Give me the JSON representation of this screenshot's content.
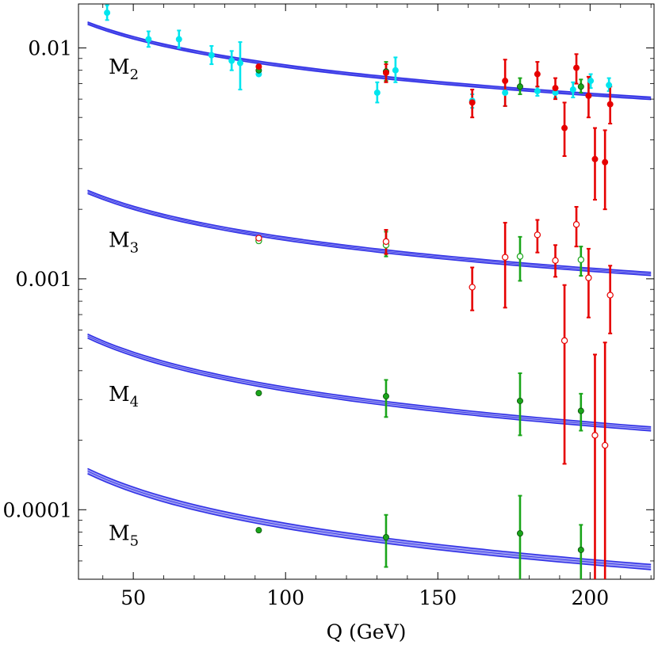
{
  "chart_data": {
    "type": "scatter",
    "title": "",
    "xlabel": "Q (GeV)",
    "ylabel": "",
    "xlim": [
      32,
      221
    ],
    "ylim": [
      5e-05,
      0.0155
    ],
    "yscale": "log",
    "grid": false,
    "x_ticks": [
      {
        "value": 50,
        "label": "50"
      },
      {
        "value": 100,
        "label": "100"
      },
      {
        "value": 150,
        "label": "150"
      },
      {
        "value": 200,
        "label": "200"
      }
    ],
    "y_ticks": [
      {
        "value": 0.01,
        "label": "0.01"
      },
      {
        "value": 0.001,
        "label": "0.001"
      },
      {
        "value": 0.0001,
        "label": "0.0001"
      }
    ],
    "colors": {
      "band": "#3232e6",
      "band_fill": "#9b9bf4",
      "cyan": "#00e5ee",
      "red": "#e60000",
      "green": "#1aa51a"
    },
    "curves": [
      {
        "moment": "M",
        "sub": "2",
        "label_x": 38,
        "label_y": 0.0083,
        "x": [
          35,
          220
        ],
        "y0": 0.0128,
        "y1": 0.00605,
        "width": 0.012
      },
      {
        "moment": "M",
        "sub": "3",
        "label_x": 38,
        "label_y": 0.00148,
        "x": [
          35,
          220
        ],
        "y0": 0.00238,
        "y1": 0.00105,
        "width": 0.016
      },
      {
        "moment": "M",
        "sub": "4",
        "label_x": 38,
        "label_y": 0.000318,
        "x": [
          35,
          220
        ],
        "y0": 0.000565,
        "y1": 0.000224,
        "width": 0.02
      },
      {
        "moment": "M",
        "sub": "5",
        "label_x": 38,
        "label_y": 7.95e-05,
        "x": [
          35,
          220
        ],
        "y0": 0.000147,
        "y1": 5.65e-05,
        "width": 0.026
      }
    ],
    "series": [
      {
        "name": "cyan",
        "color": "cyan",
        "filled": true,
        "points": [
          {
            "x": 41.4,
            "y": 0.0142,
            "lo": 0.0132,
            "hi": 0.0153
          },
          {
            "x": 55.0,
            "y": 0.0109,
            "lo": 0.0101,
            "hi": 0.0118
          },
          {
            "x": 65.0,
            "y": 0.0109,
            "lo": 0.01,
            "hi": 0.0119
          },
          {
            "x": 75.7,
            "y": 0.0093,
            "lo": 0.0085,
            "hi": 0.0102
          },
          {
            "x": 82.3,
            "y": 0.0088,
            "lo": 0.008,
            "hi": 0.0097
          },
          {
            "x": 85.1,
            "y": 0.0086,
            "lo": 0.0066,
            "hi": 0.0106
          },
          {
            "x": 91.2,
            "y": 0.0077,
            "lo": 0.0076,
            "hi": 0.0078
          },
          {
            "x": 130.1,
            "y": 0.0064,
            "lo": 0.0058,
            "hi": 0.0071
          },
          {
            "x": 136.1,
            "y": 0.008,
            "lo": 0.0071,
            "hi": 0.0091
          },
          {
            "x": 161.3,
            "y": 0.0059,
            "lo": 0.0055,
            "hi": 0.0063
          },
          {
            "x": 172.1,
            "y": 0.0064,
            "lo": 0.0056,
            "hi": 0.0073
          },
          {
            "x": 182.7,
            "y": 0.0065,
            "lo": 0.0062,
            "hi": 0.0068
          },
          {
            "x": 188.6,
            "y": 0.0064,
            "lo": 0.0061,
            "hi": 0.0068
          },
          {
            "x": 194.4,
            "y": 0.0066,
            "lo": 0.0061,
            "hi": 0.0071
          },
          {
            "x": 200.2,
            "y": 0.0072,
            "lo": 0.0067,
            "hi": 0.0077
          },
          {
            "x": 206.2,
            "y": 0.0069,
            "lo": 0.0065,
            "hi": 0.0074
          }
        ]
      },
      {
        "name": "M2 green",
        "color": "green",
        "filled": true,
        "points": [
          {
            "x": 91.2,
            "y": 0.008,
            "lo": 0.0079,
            "hi": 0.0081
          },
          {
            "x": 133.0,
            "y": 0.0079,
            "lo": 0.0072,
            "hi": 0.0087
          },
          {
            "x": 177.0,
            "y": 0.0068,
            "lo": 0.0063,
            "hi": 0.0074
          },
          {
            "x": 197.0,
            "y": 0.0068,
            "lo": 0.0064,
            "hi": 0.0073
          }
        ]
      },
      {
        "name": "M2 red",
        "color": "red",
        "filled": true,
        "points": [
          {
            "x": 91.2,
            "y": 0.0083,
            "lo": 0.0082,
            "hi": 0.0084
          },
          {
            "x": 133.0,
            "y": 0.0078,
            "lo": 0.0071,
            "hi": 0.0085
          },
          {
            "x": 161.3,
            "y": 0.0058,
            "lo": 0.005,
            "hi": 0.0066
          },
          {
            "x": 172.1,
            "y": 0.0072,
            "lo": 0.0056,
            "hi": 0.0089
          },
          {
            "x": 182.7,
            "y": 0.0077,
            "lo": 0.0068,
            "hi": 0.0087
          },
          {
            "x": 188.6,
            "y": 0.0067,
            "lo": 0.006,
            "hi": 0.0074
          },
          {
            "x": 191.6,
            "y": 0.0045,
            "lo": 0.0034,
            "hi": 0.0058
          },
          {
            "x": 195.5,
            "y": 0.0082,
            "lo": 0.007,
            "hi": 0.0094
          },
          {
            "x": 199.5,
            "y": 0.0062,
            "lo": 0.005,
            "hi": 0.0075
          },
          {
            "x": 201.6,
            "y": 0.0033,
            "lo": 0.0022,
            "hi": 0.0045
          },
          {
            "x": 204.9,
            "y": 0.0032,
            "lo": 0.002,
            "hi": 0.0044
          },
          {
            "x": 206.6,
            "y": 0.0057,
            "lo": 0.0047,
            "hi": 0.0068
          }
        ]
      },
      {
        "name": "M3 green",
        "color": "green",
        "filled": false,
        "points": [
          {
            "x": 91.2,
            "y": 0.00146,
            "lo": 0.00143,
            "hi": 0.00149
          },
          {
            "x": 133.0,
            "y": 0.0014,
            "lo": 0.00125,
            "hi": 0.0016
          },
          {
            "x": 177.0,
            "y": 0.00125,
            "lo": 0.00098,
            "hi": 0.00152
          },
          {
            "x": 197.0,
            "y": 0.00121,
            "lo": 0.00103,
            "hi": 0.00138
          }
        ]
      },
      {
        "name": "M3 red",
        "color": "red",
        "filled": false,
        "points": [
          {
            "x": 91.2,
            "y": 0.0015,
            "lo": 0.00147,
            "hi": 0.00153
          },
          {
            "x": 133.0,
            "y": 0.00145,
            "lo": 0.00128,
            "hi": 0.00163
          },
          {
            "x": 161.3,
            "y": 0.00092,
            "lo": 0.00073,
            "hi": 0.00112
          },
          {
            "x": 172.1,
            "y": 0.00124,
            "lo": 0.00075,
            "hi": 0.00175
          },
          {
            "x": 182.7,
            "y": 0.00155,
            "lo": 0.0013,
            "hi": 0.0018
          },
          {
            "x": 188.6,
            "y": 0.0012,
            "lo": 0.00102,
            "hi": 0.0014
          },
          {
            "x": 191.6,
            "y": 0.00054,
            "lo": 0.000158,
            "hi": 0.00094
          },
          {
            "x": 195.5,
            "y": 0.00172,
            "lo": 0.00138,
            "hi": 0.00205
          },
          {
            "x": 199.5,
            "y": 0.00101,
            "lo": 0.00068,
            "hi": 0.00135
          },
          {
            "x": 201.6,
            "y": 0.00021,
            "lo": 4e-05,
            "hi": 0.00047
          },
          {
            "x": 204.9,
            "y": 0.00019,
            "lo": 4e-05,
            "hi": 0.00053
          },
          {
            "x": 206.6,
            "y": 0.00085,
            "lo": 0.00058,
            "hi": 0.00114
          }
        ]
      },
      {
        "name": "M4 green",
        "color": "green",
        "filled": true,
        "points": [
          {
            "x": 91.2,
            "y": 0.00032,
            "lo": 0.000314,
            "hi": 0.000326
          },
          {
            "x": 133.0,
            "y": 0.00031,
            "lo": 0.000252,
            "hi": 0.000365
          },
          {
            "x": 177.0,
            "y": 0.000296,
            "lo": 0.00021,
            "hi": 0.00039
          },
          {
            "x": 197.0,
            "y": 0.000268,
            "lo": 0.00022,
            "hi": 0.000318
          }
        ]
      },
      {
        "name": "M5 green",
        "color": "green",
        "filled": true,
        "points": [
          {
            "x": 91.2,
            "y": 8.15e-05,
            "lo": 8e-05,
            "hi": 8.3e-05
          },
          {
            "x": 133.0,
            "y": 7.6e-05,
            "lo": 5.65e-05,
            "hi": 9.5e-05
          },
          {
            "x": 177.0,
            "y": 7.9e-05,
            "lo": 4.4e-05,
            "hi": 0.000115
          },
          {
            "x": 197.0,
            "y": 6.7e-05,
            "lo": 4.85e-05,
            "hi": 8.6e-05
          }
        ]
      }
    ]
  }
}
